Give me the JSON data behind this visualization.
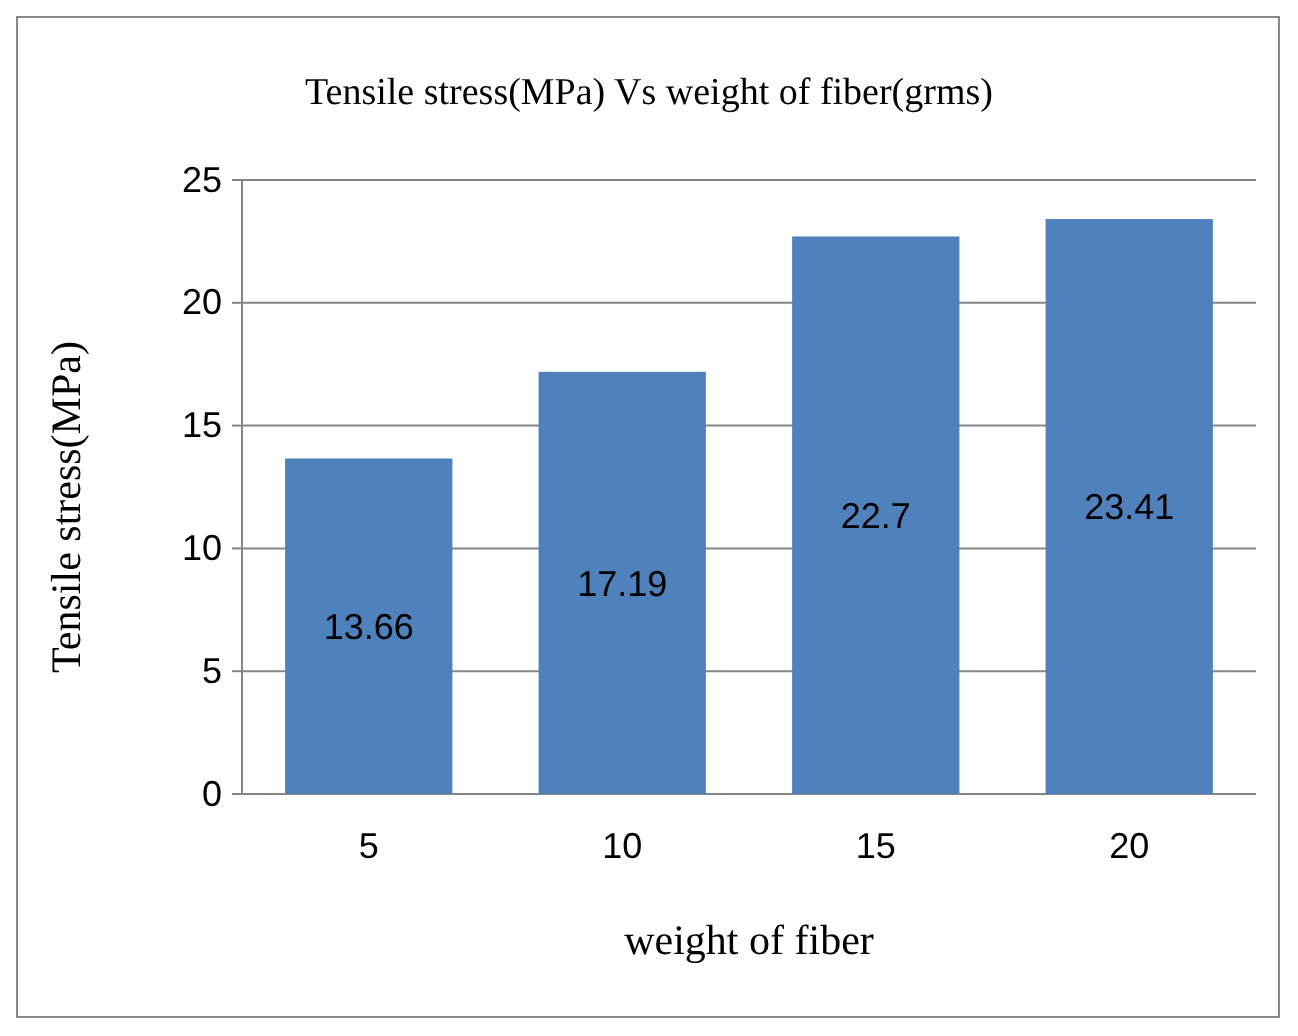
{
  "chart_data": {
    "type": "bar",
    "title": "Tensile stress(MPa) Vs weight of fiber(grms)",
    "xlabel": "weight of fiber",
    "ylabel": "Tensile stress(MPa)",
    "categories": [
      "5",
      "10",
      "15",
      "20"
    ],
    "values": [
      13.66,
      17.19,
      22.7,
      23.41
    ],
    "color": "#4f81bd",
    "ylim": [
      0,
      25
    ],
    "yticks": [
      0,
      5,
      10,
      15,
      20,
      25
    ],
    "grid": "y",
    "data_labels": true
  }
}
